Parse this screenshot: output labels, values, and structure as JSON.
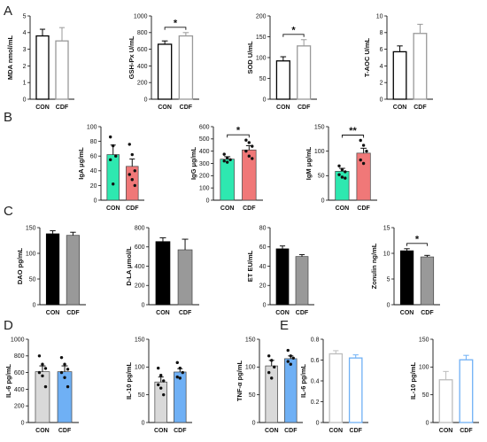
{
  "panels": [
    {
      "letter": "A"
    },
    {
      "letter": "B"
    },
    {
      "letter": "C"
    },
    {
      "letter": "D"
    },
    {
      "letter": "E"
    }
  ],
  "chart_data": [
    {
      "id": "mda",
      "type": "bar",
      "panel": "A",
      "ylabel": "MDA nmol/mL",
      "ylim": [
        0,
        5
      ],
      "yticks": [
        0,
        1,
        2,
        3,
        4,
        5
      ],
      "categories": [
        "CON",
        "CDF"
      ],
      "values": [
        3.8,
        3.5
      ],
      "errors": [
        0.4,
        0.8
      ],
      "style": "outline",
      "colors": [
        "#000000",
        "#999999"
      ],
      "points": [
        [],
        []
      ],
      "significance": null
    },
    {
      "id": "gsh",
      "type": "bar",
      "panel": "A",
      "ylabel": "GSH-Px U/mL",
      "ylim": [
        0,
        1000
      ],
      "yticks": [
        0,
        200,
        400,
        600,
        800,
        1000
      ],
      "categories": [
        "CON",
        "CDF"
      ],
      "values": [
        660,
        760
      ],
      "errors": [
        40,
        40
      ],
      "style": "outline",
      "colors": [
        "#000000",
        "#999999"
      ],
      "points": [
        [],
        []
      ],
      "significance": "*"
    },
    {
      "id": "sod",
      "type": "bar",
      "panel": "A",
      "ylabel": "SOD U/mL",
      "ylim": [
        0,
        200
      ],
      "yticks": [
        0,
        50,
        100,
        150,
        200
      ],
      "categories": [
        "CON",
        "CDF"
      ],
      "values": [
        92,
        128
      ],
      "errors": [
        10,
        15
      ],
      "style": "outline",
      "colors": [
        "#000000",
        "#999999"
      ],
      "points": [
        [],
        []
      ],
      "significance": "*"
    },
    {
      "id": "taoc",
      "type": "bar",
      "panel": "A",
      "ylabel": "T-AOC U/mL",
      "ylim": [
        0,
        10
      ],
      "yticks": [
        0,
        2,
        4,
        6,
        8,
        10
      ],
      "categories": [
        "CON",
        "CDF"
      ],
      "values": [
        5.7,
        7.9
      ],
      "errors": [
        0.7,
        1.1
      ],
      "style": "outline",
      "colors": [
        "#000000",
        "#999999"
      ],
      "points": [
        [],
        []
      ],
      "significance": null
    },
    {
      "id": "iga",
      "type": "bar",
      "panel": "B",
      "ylabel": "IgA μg/mL",
      "ylim": [
        0,
        100
      ],
      "yticks": [
        0,
        20,
        40,
        60,
        80,
        100
      ],
      "categories": [
        "CON",
        "CDF"
      ],
      "values": [
        62,
        46
      ],
      "errors": [
        13,
        10
      ],
      "style": "filled",
      "colors": [
        "#2ee8b0",
        "#f07878"
      ],
      "points": [
        [
          86,
          74,
          60,
          55,
          22
        ],
        [
          76,
          62,
          40,
          35,
          28,
          20
        ]
      ],
      "significance": null
    },
    {
      "id": "igg",
      "type": "bar",
      "panel": "B",
      "ylabel": "IgG μg/mL",
      "ylim": [
        0,
        600
      ],
      "yticks": [
        0,
        100,
        200,
        300,
        400,
        500,
        600
      ],
      "categories": [
        "CON",
        "CDF"
      ],
      "values": [
        335,
        410
      ],
      "errors": [
        20,
        35
      ],
      "style": "filled",
      "colors": [
        "#2ee8b0",
        "#f07878"
      ],
      "points": [
        [
          375,
          345,
          330,
          320,
          310
        ],
        [
          490,
          470,
          440,
          400,
          360,
          340
        ]
      ],
      "significance": "*"
    },
    {
      "id": "igm",
      "type": "bar",
      "panel": "B",
      "ylabel": "IgM μg/mL",
      "ylim": [
        0,
        150
      ],
      "yticks": [
        0,
        50,
        100,
        150
      ],
      "categories": [
        "CON",
        "CDF"
      ],
      "values": [
        59,
        96
      ],
      "errors": [
        6,
        10
      ],
      "style": "filled",
      "colors": [
        "#2ee8b0",
        "#f07878"
      ],
      "points": [
        [
          70,
          62,
          58,
          52,
          47,
          45
        ],
        [
          122,
          112,
          100,
          82,
          75
        ]
      ],
      "significance": "**"
    },
    {
      "id": "dao",
      "type": "bar",
      "panel": "C",
      "ylabel": "DAO pg/mL",
      "ylim": [
        0,
        150
      ],
      "yticks": [
        0,
        50,
        100,
        150
      ],
      "categories": [
        "CON",
        "CDF"
      ],
      "values": [
        138,
        135
      ],
      "errors": [
        6,
        6
      ],
      "style": "filled",
      "colors": [
        "#000000",
        "#999999"
      ],
      "points": [
        [],
        []
      ],
      "significance": null
    },
    {
      "id": "dla",
      "type": "bar",
      "panel": "C",
      "ylabel": "D-LA μmol/L",
      "ylim": [
        0,
        800
      ],
      "yticks": [
        0,
        200,
        400,
        600,
        800
      ],
      "categories": [
        "CON",
        "CDF"
      ],
      "values": [
        655,
        570
      ],
      "errors": [
        40,
        110
      ],
      "style": "filled",
      "colors": [
        "#000000",
        "#999999"
      ],
      "points": [
        [],
        []
      ],
      "significance": null
    },
    {
      "id": "et",
      "type": "bar",
      "panel": "C",
      "ylabel": "ET EU/mL",
      "ylim": [
        0,
        80
      ],
      "yticks": [
        0,
        20,
        40,
        60,
        80
      ],
      "categories": [
        "CON",
        "CDF"
      ],
      "values": [
        58,
        50
      ],
      "errors": [
        3,
        2
      ],
      "style": "filled",
      "colors": [
        "#000000",
        "#999999"
      ],
      "points": [
        [],
        []
      ],
      "significance": null
    },
    {
      "id": "zonulin",
      "type": "bar",
      "panel": "C",
      "ylabel": "Zonulin ng/mL",
      "ylim": [
        0,
        15
      ],
      "yticks": [
        0,
        5,
        10,
        15
      ],
      "categories": [
        "CON",
        "CDF"
      ],
      "values": [
        10.5,
        9.3
      ],
      "errors": [
        0.4,
        0.3
      ],
      "style": "filled",
      "colors": [
        "#000000",
        "#999999"
      ],
      "points": [
        [],
        []
      ],
      "significance": "*"
    },
    {
      "id": "il6d",
      "type": "bar",
      "panel": "D",
      "ylabel": "IL-6 pg/mL",
      "ylim": [
        0,
        1000
      ],
      "yticks": [
        0,
        200,
        400,
        600,
        800,
        1000
      ],
      "categories": [
        "CON",
        "CDF"
      ],
      "values": [
        610,
        610
      ],
      "errors": [
        70,
        70
      ],
      "style": "filled",
      "colors": [
        "#d9d9d9",
        "#6fb0f5"
      ],
      "points": [
        [
          800,
          700,
          650,
          600,
          560,
          430
        ],
        [
          780,
          700,
          640,
          600,
          540,
          430
        ]
      ],
      "significance": null
    },
    {
      "id": "il10d",
      "type": "bar",
      "panel": "D",
      "ylabel": "IL-10 pg/mL",
      "ylim": [
        0,
        150
      ],
      "yticks": [
        0,
        50,
        100,
        150
      ],
      "categories": [
        "CON",
        "CDF"
      ],
      "values": [
        73,
        91
      ],
      "errors": [
        9,
        6
      ],
      "style": "filled",
      "colors": [
        "#d9d9d9",
        "#6fb0f5"
      ],
      "points": [
        [
          98,
          85,
          75,
          68,
          62,
          50
        ],
        [
          108,
          98,
          90,
          82,
          80
        ]
      ],
      "significance": null
    },
    {
      "id": "tnf",
      "type": "bar",
      "panel": "D",
      "ylabel": "TNF-α pg/mL",
      "ylim": [
        0,
        150
      ],
      "yticks": [
        0,
        50,
        100,
        150
      ],
      "categories": [
        "CON",
        "CDF"
      ],
      "values": [
        102,
        115
      ],
      "errors": [
        10,
        5
      ],
      "style": "filled",
      "colors": [
        "#d9d9d9",
        "#6fb0f5"
      ],
      "points": [
        [
          120,
          112,
          100,
          90,
          80
        ],
        [
          130,
          120,
          116,
          110,
          105
        ]
      ],
      "significance": null
    },
    {
      "id": "il6e",
      "type": "bar",
      "panel": "E",
      "ylabel": "IL-6 pg/mL",
      "ylim": [
        0,
        0.8
      ],
      "yticks": [
        0.0,
        0.2,
        0.4,
        0.6,
        0.8
      ],
      "categories": [
        "CON",
        "CDF"
      ],
      "values": [
        0.66,
        0.62
      ],
      "errors": [
        0.03,
        0.03
      ],
      "style": "outline",
      "colors": [
        "#bdbdbd",
        "#6fb0f5"
      ],
      "points": [
        [],
        []
      ],
      "significance": null
    },
    {
      "id": "il10e",
      "type": "bar",
      "panel": "E",
      "ylabel": "IL-10 pg/mL",
      "ylim": [
        0,
        150
      ],
      "yticks": [
        0,
        50,
        100,
        150
      ],
      "categories": [
        "CON",
        "CDF"
      ],
      "values": [
        77,
        113
      ],
      "errors": [
        15,
        8
      ],
      "style": "outline",
      "colors": [
        "#bdbdbd",
        "#6fb0f5"
      ],
      "points": [
        [],
        []
      ],
      "significance": null
    }
  ]
}
